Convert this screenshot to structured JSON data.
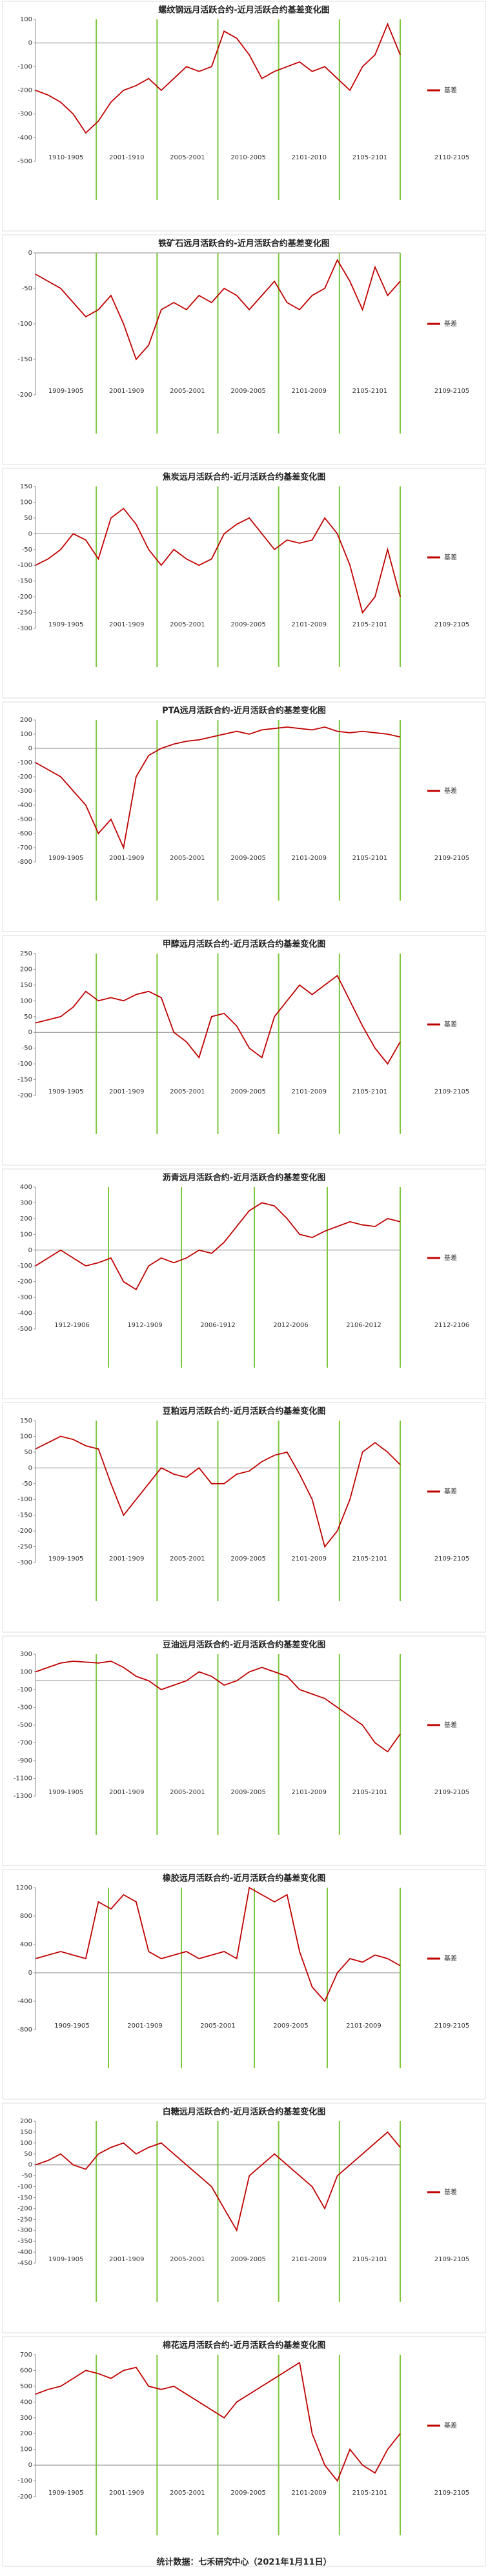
{
  "chart_data": [
    {
      "type": "line",
      "title": "螺纹钢远月活跃合约-近月活跃合约基差变化图",
      "ylim": [
        -500,
        100
      ],
      "yticks": [
        100,
        0,
        -100,
        -200,
        -300,
        -400,
        -500
      ],
      "periods": [
        "1910-1905",
        "2001-1910",
        "2005-2001",
        "2010-2005",
        "2101-2010",
        "2105-2101",
        "2110-2105"
      ],
      "series": [
        {
          "name": "基差",
          "color": "#c00000",
          "values": [
            -200,
            -220,
            -250,
            -300,
            -380,
            -330,
            -250,
            -200,
            -180,
            -150,
            -200,
            -150,
            -100,
            -120,
            -100,
            50,
            20,
            -50,
            -150,
            -120,
            -100,
            -80,
            -120,
            -100,
            -150,
            -200,
            -100,
            -50,
            80,
            -50
          ]
        }
      ]
    },
    {
      "type": "line",
      "title": "铁矿石远月活跃合约-近月活跃合约基差变化图",
      "ylim": [
        -200,
        0
      ],
      "yticks": [
        0,
        -50,
        -100,
        -150,
        -200
      ],
      "periods": [
        "1909-1905",
        "2001-1909",
        "2005-2001",
        "2009-2005",
        "2101-2009",
        "2105-2101",
        "2109-2105"
      ],
      "series": [
        {
          "name": "基差",
          "color": "#c00000",
          "values": [
            -30,
            -40,
            -50,
            -70,
            -90,
            -80,
            -60,
            -100,
            -150,
            -130,
            -80,
            -70,
            -80,
            -60,
            -70,
            -50,
            -60,
            -80,
            -60,
            -40,
            -70,
            -80,
            -60,
            -50,
            -10,
            -40,
            -80,
            -20,
            -60,
            -40
          ]
        }
      ]
    },
    {
      "type": "line",
      "title": "焦炭远月活跃合约-近月活跃合约基差变化图",
      "ylim": [
        -300,
        150
      ],
      "yticks": [
        150,
        100,
        50,
        0,
        -50,
        -100,
        -150,
        -200,
        -250,
        -300
      ],
      "periods": [
        "1909-1905",
        "2001-1909",
        "2005-2001",
        "2009-2005",
        "2101-2009",
        "2105-2101",
        "2109-2105"
      ],
      "series": [
        {
          "name": "基差",
          "color": "#c00000",
          "values": [
            -100,
            -80,
            -50,
            0,
            -20,
            -80,
            50,
            80,
            30,
            -50,
            -100,
            -50,
            -80,
            -100,
            -80,
            0,
            30,
            50,
            0,
            -50,
            -20,
            -30,
            -20,
            50,
            0,
            -100,
            -250,
            -200,
            -50,
            -200
          ]
        }
      ]
    },
    {
      "type": "line",
      "title": "PTA远月活跃合约-近月活跃合约基差变化图",
      "ylim": [
        -800,
        200
      ],
      "yticks": [
        200,
        100,
        0,
        -100,
        -200,
        -300,
        -400,
        -500,
        -600,
        -700,
        -800
      ],
      "periods": [
        "1909-1905",
        "2001-1909",
        "2005-2001",
        "2009-2005",
        "2101-2009",
        "2105-2101",
        "2109-2105"
      ],
      "series": [
        {
          "name": "基差",
          "color": "#c00000",
          "values": [
            -100,
            -150,
            -200,
            -300,
            -400,
            -600,
            -500,
            -700,
            -200,
            -50,
            0,
            30,
            50,
            60,
            80,
            100,
            120,
            100,
            130,
            140,
            150,
            140,
            130,
            150,
            120,
            110,
            120,
            110,
            100,
            80
          ]
        }
      ]
    },
    {
      "type": "line",
      "title": "甲醇远月活跃合约-近月活跃合约基差变化图",
      "ylim": [
        -200,
        250
      ],
      "yticks": [
        250,
        200,
        150,
        100,
        50,
        0,
        -50,
        -100,
        -150,
        -200
      ],
      "periods": [
        "1909-1905",
        "2001-1909",
        "2005-2001",
        "2009-2005",
        "2101-2009",
        "2105-2101",
        "2109-2105"
      ],
      "series": [
        {
          "name": "基差",
          "color": "#c00000",
          "values": [
            30,
            40,
            50,
            80,
            130,
            100,
            110,
            100,
            120,
            130,
            110,
            0,
            -30,
            -80,
            50,
            60,
            20,
            -50,
            -80,
            50,
            100,
            150,
            120,
            150,
            180,
            100,
            20,
            -50,
            -100,
            -30
          ]
        }
      ]
    },
    {
      "type": "line",
      "title": "沥青远月活跃合约-近月活跃合约基差变化图",
      "ylim": [
        -500,
        400
      ],
      "yticks": [
        400,
        300,
        200,
        100,
        0,
        -100,
        -200,
        -300,
        -400,
        -500
      ],
      "periods": [
        "1912-1906",
        "1912-1909",
        "2006-1912",
        "2012-2006",
        "2106-2012",
        "2112-2106"
      ],
      "series": [
        {
          "name": "基差",
          "color": "#c00000",
          "values": [
            -100,
            -50,
            0,
            -50,
            -100,
            -80,
            -50,
            -200,
            -250,
            -100,
            -50,
            -80,
            -50,
            0,
            -20,
            50,
            150,
            250,
            300,
            280,
            200,
            100,
            80,
            120,
            150,
            180,
            160,
            150,
            200,
            180
          ]
        }
      ]
    },
    {
      "type": "line",
      "title": "豆粕远月活跃合约-近月活跃合约基差变化图",
      "ylim": [
        -300,
        150
      ],
      "yticks": [
        150,
        100,
        50,
        0,
        -50,
        -100,
        -150,
        -200,
        -250,
        -300
      ],
      "periods": [
        "1909-1905",
        "2001-1909",
        "2005-2001",
        "2009-2005",
        "2101-2009",
        "2105-2101",
        "2109-2105"
      ],
      "series": [
        {
          "name": "基差",
          "color": "#c00000",
          "values": [
            60,
            80,
            100,
            90,
            70,
            60,
            -50,
            -150,
            -100,
            -50,
            0,
            -20,
            -30,
            0,
            -50,
            -50,
            -20,
            -10,
            20,
            40,
            50,
            -20,
            -100,
            -250,
            -200,
            -100,
            50,
            80,
            50,
            10
          ]
        }
      ]
    },
    {
      "type": "line",
      "title": "豆油远月活跃合约-近月活跃合约基差变化图",
      "ylim": [
        -1300,
        300
      ],
      "yticks": [
        300,
        100,
        -100,
        -300,
        -500,
        -700,
        -900,
        -1100,
        -1300
      ],
      "periods": [
        "1909-1905",
        "2001-1909",
        "2005-2001",
        "2009-2005",
        "2101-2009",
        "2105-2101",
        "2109-2105"
      ],
      "series": [
        {
          "name": "基差",
          "color": "#c00000",
          "values": [
            100,
            150,
            200,
            220,
            210,
            200,
            220,
            150,
            50,
            0,
            -100,
            -50,
            0,
            100,
            50,
            -50,
            0,
            100,
            150,
            100,
            50,
            -100,
            -150,
            -200,
            -300,
            -400,
            -500,
            -700,
            -800,
            -600
          ]
        }
      ]
    },
    {
      "type": "line",
      "title": "橡胶远月活跃合约-近月活跃合约基差变化图",
      "ylim": [
        -800,
        1200
      ],
      "yticks": [
        1200,
        800,
        400,
        0,
        -400,
        -800
      ],
      "periods": [
        "1909-1905",
        "2001-1909",
        "2005-2001",
        "2009-2005",
        "2101-2009",
        "2109-2105"
      ],
      "series": [
        {
          "name": "基差",
          "color": "#c00000",
          "values": [
            200,
            250,
            300,
            250,
            200,
            1000,
            900,
            1100,
            1000,
            300,
            200,
            250,
            300,
            200,
            250,
            300,
            200,
            1200,
            1100,
            1000,
            1100,
            300,
            -200,
            -400,
            0,
            200,
            150,
            250,
            200,
            100
          ]
        }
      ]
    },
    {
      "type": "line",
      "title": "白糖远月活跃合约-近月活跃合约基差变化图",
      "ylim": [
        -450,
        200
      ],
      "yticks": [
        200,
        150,
        100,
        50,
        0,
        -50,
        -100,
        -150,
        -200,
        -250,
        -300,
        -350,
        -400,
        -450
      ],
      "periods": [
        "1909-1905",
        "2001-1909",
        "2005-2001",
        "2009-2005",
        "2101-2009",
        "2105-2101",
        "2109-2105"
      ],
      "series": [
        {
          "name": "基差",
          "color": "#c00000",
          "values": [
            0,
            20,
            50,
            0,
            -20,
            50,
            80,
            100,
            50,
            80,
            100,
            50,
            0,
            -50,
            -100,
            -200,
            -300,
            -50,
            0,
            50,
            0,
            -50,
            -100,
            -200,
            -50,
            0,
            50,
            100,
            150,
            80
          ]
        }
      ]
    },
    {
      "type": "line",
      "title": "棉花远月活跃合约-近月活跃合约基差变化图",
      "ylim": [
        -200,
        700
      ],
      "yticks": [
        700,
        600,
        500,
        400,
        300,
        200,
        100,
        0,
        -100,
        -200
      ],
      "periods": [
        "1909-1905",
        "2001-1909",
        "2005-2001",
        "2009-2005",
        "2101-2009",
        "2105-2101",
        "2109-2105"
      ],
      "series": [
        {
          "name": "基差",
          "color": "#c00000",
          "values": [
            450,
            480,
            500,
            550,
            600,
            580,
            550,
            600,
            620,
            500,
            480,
            500,
            450,
            400,
            350,
            300,
            400,
            450,
            500,
            550,
            600,
            650,
            200,
            0,
            -100,
            100,
            0,
            -50,
            100,
            200
          ]
        }
      ]
    }
  ],
  "footer": "统计数据：七禾研究中心（2021年1月11日）"
}
